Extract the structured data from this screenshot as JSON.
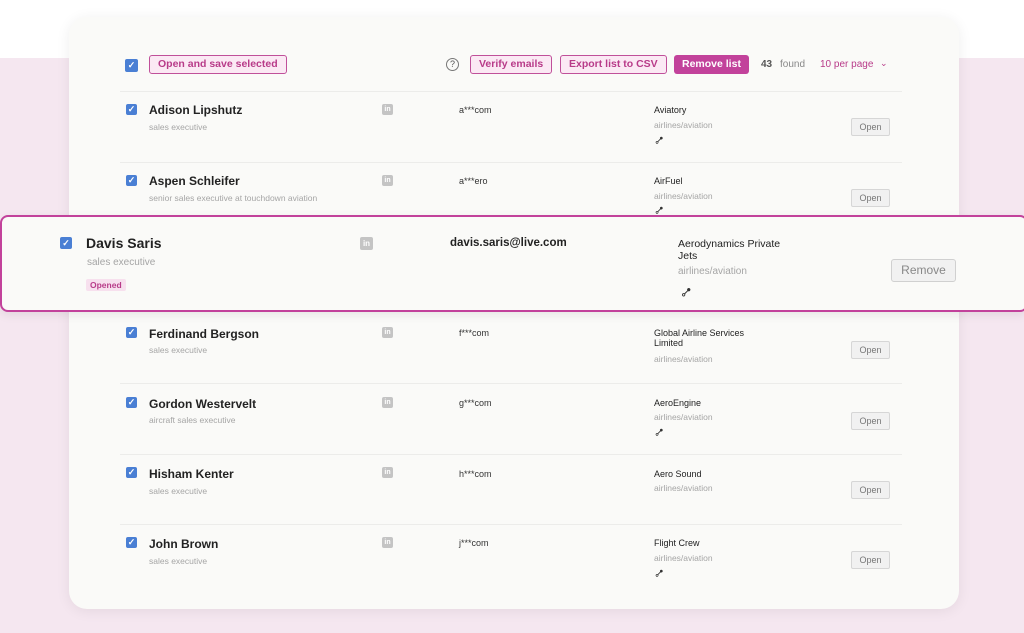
{
  "toolbar": {
    "open_save_label": "Open and save selected",
    "help_icon": "?",
    "verify_label": "Verify emails",
    "export_label": "Export list to CSV",
    "remove_list_label": "Remove list",
    "found_count": "43",
    "found_label": "found",
    "per_page": "10 per page",
    "chevron": "⌄"
  },
  "icons": {
    "checkbox": "✓",
    "linkedin": "in",
    "link": "⊶"
  },
  "colors": {
    "accent": "#c2429b",
    "checkbox": "#4a7fd4",
    "background_band": "#f5e7f0"
  },
  "rows": [
    {
      "name": "Adison Lipshutz",
      "title": "sales executive",
      "email": "a***com",
      "company": "Aviatory",
      "industry": "airlines/aviation",
      "action": "Open"
    },
    {
      "name": "Aspen Schleifer",
      "title": "senior sales executive at touchdown aviation",
      "email": "a***ero",
      "company": "AirFuel",
      "industry": "airlines/aviation",
      "action": "Open"
    },
    {
      "name": "Ferdinand Bergson",
      "title": "sales executive",
      "email": "f***com",
      "company": "Global Airline Services Limited",
      "industry": "airlines/aviation",
      "action": "Open"
    },
    {
      "name": "Gordon Westervelt",
      "title": "aircraft sales executive",
      "email": "g***com",
      "company": "AeroEngine",
      "industry": "airlines/aviation",
      "action": "Open"
    },
    {
      "name": "Hisham Kenter",
      "title": "sales executive",
      "email": "h***com",
      "company": "Aero Sound",
      "industry": "airlines/aviation",
      "action": "Open"
    },
    {
      "name": "John Brown",
      "title": "sales executive",
      "email": "j***com",
      "company": "Flight Crew",
      "industry": "airlines/aviation",
      "action": "Open"
    }
  ],
  "highlight": {
    "name": "Davis Saris",
    "title": "sales executive",
    "badge": "Opened",
    "email": "davis.saris@live.com",
    "company": "Aerodynamics Private Jets",
    "industry": "airlines/aviation",
    "action": "Remove"
  }
}
